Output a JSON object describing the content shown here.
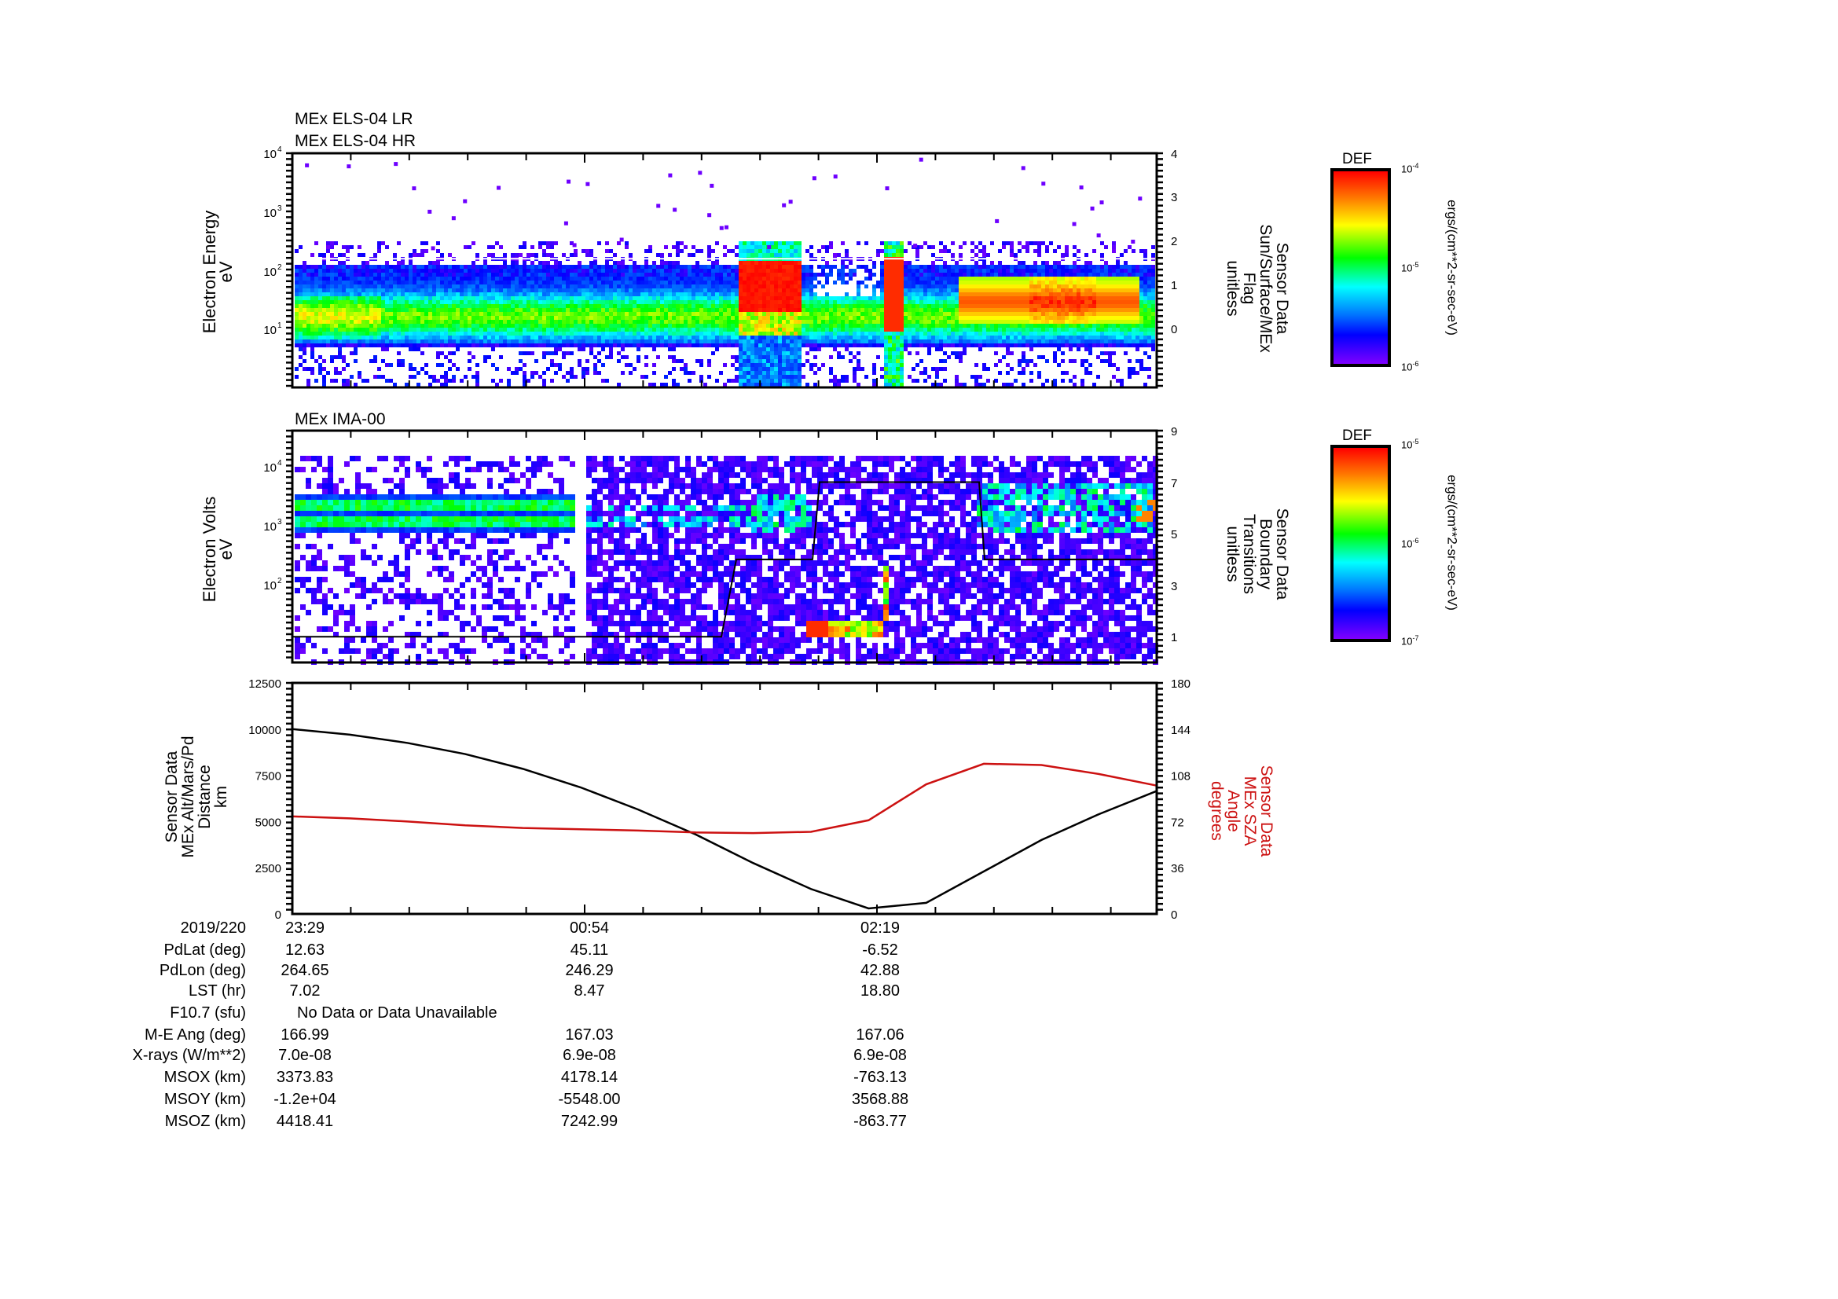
{
  "chart_data": [
    {
      "type": "heatmap",
      "panel": "top",
      "titles": [
        "MEx ELS-04 LR",
        "MEx ELS-04 HR"
      ],
      "ylabel": [
        "Electron Energy",
        "eV"
      ],
      "yscale": "log",
      "yticks": [
        "10^4",
        "10^3",
        "10^2",
        "10^1"
      ],
      "ylim": [
        1,
        10000
      ],
      "right_ylabel": [
        "Sensor Data",
        "Sun/Surface/MEx",
        "Flag",
        "unitless"
      ],
      "right_yticks": [
        "4",
        "3",
        "2",
        "1",
        "0"
      ],
      "right_ylim": [
        -0.8,
        4
      ],
      "colorbar": {
        "title": "DEF",
        "ticks": [
          "10^-4",
          "10^-5",
          "10^-6"
        ],
        "units": "ergs/(cm**2-sr-sec-eV)"
      },
      "features": [
        {
          "desc": "background electrons band 5-150 eV, green core ~10-40 eV",
          "x_start": "23:29",
          "x_end": "end"
        },
        {
          "desc": "intense red burst 30-200 eV",
          "x_start": "~01:32",
          "x_end": "~01:42"
        },
        {
          "desc": "narrow intense red burst",
          "x_start": "~02:19",
          "x_end": "~02:22"
        },
        {
          "desc": "orange/red band 30-80 eV",
          "x_start": "~02:34",
          "x_end": "~03:00"
        }
      ],
      "flag_line": {
        "value": 1.7,
        "color": "#ffffff"
      }
    },
    {
      "type": "heatmap",
      "panel": "middle",
      "titles": [
        "MEx IMA-00"
      ],
      "ylabel": [
        "Electron Volts",
        "eV"
      ],
      "yscale": "log",
      "yticks": [
        "10^4",
        "10^3",
        "10^2"
      ],
      "right_ylabel": [
        "Sensor Data",
        "Boundary",
        "Transitions",
        "unitless"
      ],
      "right_yticks": [
        "9",
        "7",
        "5",
        "3",
        "1"
      ],
      "right_ylim": [
        0,
        9
      ],
      "colorbar": {
        "title": "DEF",
        "ticks": [
          "10^-5",
          "10^-6",
          "10^-7"
        ],
        "units": "ergs/(cm**2-sr-sec-eV)"
      },
      "boundary_transitions": {
        "x": [
          "23:29",
          "~01:27",
          "~01:31",
          "~01:44",
          "~01:45",
          "~02:12",
          "~02:13",
          "end"
        ],
        "y": [
          1,
          1,
          4,
          4,
          7,
          7,
          4,
          4
        ]
      },
      "features": [
        {
          "desc": "solar wind ion bands at ~1-3 keV",
          "x_start": "23:29",
          "x_end": "~00:54"
        },
        {
          "desc": "data gap",
          "x_start": "~00:54",
          "x_end": "~00:55"
        },
        {
          "desc": "low-energy ions ~20 eV red/green streak",
          "x_start": "~01:55",
          "x_end": "~02:17"
        },
        {
          "desc": "magnetosheath ions 1-5 keV",
          "x_start": "~02:34",
          "x_end": "end"
        }
      ]
    },
    {
      "type": "line",
      "panel": "bottom",
      "ylabel": [
        "Sensor Data",
        "MEx Alt/Mars/Pd",
        "Distance",
        "km"
      ],
      "yticks": [
        "12500",
        "10000",
        "7500",
        "5000",
        "2500",
        "0"
      ],
      "ylim": [
        0,
        12500
      ],
      "right_ylabel": [
        "Sensor Data",
        "MEx SZA",
        "Angle",
        "degrees"
      ],
      "right_yticks": [
        "180",
        "144",
        "108",
        "72",
        "36",
        "0"
      ],
      "right_ylim": [
        0,
        180
      ],
      "x_minutes_from_start": [
        0,
        17,
        34,
        51,
        68,
        85,
        102,
        119,
        136,
        153,
        170,
        187,
        204,
        221,
        238,
        255
      ],
      "series": [
        {
          "name": "MEx Alt/Mars/Pd Distance (km)",
          "color": "#000000",
          "axis": "left",
          "values": [
            10000,
            9700,
            9250,
            8650,
            7850,
            6850,
            5650,
            4300,
            2750,
            1350,
            300,
            600,
            2300,
            4000,
            5400,
            6650
          ]
        },
        {
          "name": "MEx SZA Angle (degrees)",
          "color": "#cc1111",
          "axis": "right",
          "values": [
            76,
            74.5,
            72,
            69,
            67,
            66,
            65,
            63.5,
            63,
            64,
            73,
            101,
            117,
            116,
            109,
            100
          ]
        }
      ]
    }
  ],
  "x_axis": {
    "major_ticks": [
      "23:29",
      "00:54",
      "02:19"
    ],
    "minor_per_major": 5
  },
  "info_table": {
    "rows": [
      {
        "label": "2019/220",
        "values": [
          "23:29",
          "00:54",
          "02:19"
        ]
      },
      {
        "label": "PdLat (deg)",
        "values": [
          "12.63",
          "45.11",
          "-6.52"
        ]
      },
      {
        "label": "PdLon (deg)",
        "values": [
          "264.65",
          "246.29",
          "42.88"
        ]
      },
      {
        "label": "LST (hr)",
        "values": [
          "7.02",
          "8.47",
          "18.80"
        ]
      },
      {
        "label": "F10.7 (sfu)",
        "values": [
          "No Data or Data Unavailable",
          "",
          ""
        ]
      },
      {
        "label": "M-E Ang (deg)",
        "values": [
          "166.99",
          "167.03",
          "167.06"
        ]
      },
      {
        "label": "X-rays (W/m**2)",
        "values": [
          "7.0e-08",
          "6.9e-08",
          "6.9e-08"
        ]
      },
      {
        "label": "MSOX (km)",
        "values": [
          "3373.83",
          "4178.14",
          "-763.13"
        ]
      },
      {
        "label": "MSOY (km)",
        "values": [
          "-1.2e+04",
          "-5548.00",
          "3568.88"
        ]
      },
      {
        "label": "MSOZ (km)",
        "values": [
          "4418.41",
          "7242.99",
          "-863.77"
        ]
      }
    ]
  },
  "labels": {
    "top_title_1": "MEx ELS-04 LR",
    "top_title_2": "MEx ELS-04 HR",
    "mid_title": "MEx IMA-00",
    "top_ylabel": "Electron Energy",
    "top_yunit": "eV",
    "mid_ylabel": "Electron Volts",
    "mid_yunit": "eV",
    "top_right_1": "Sensor Data",
    "top_right_2": "Sun/Surface/MEx",
    "top_right_3": "Flag",
    "top_right_4": "unitless",
    "mid_right_1": "Sensor Data",
    "mid_right_2": "Boundary",
    "mid_right_3": "Transitions",
    "mid_right_4": "unitless",
    "bot_left_1": "Sensor Data",
    "bot_left_2": "MEx Alt/Mars/Pd",
    "bot_left_3": "Distance",
    "bot_left_4": "km",
    "bot_right_1": "Sensor Data",
    "bot_right_2": "MEx SZA",
    "bot_right_3": "Angle",
    "bot_right_4": "degrees",
    "cb_title": "DEF",
    "cb1_units": "ergs/(cm**2-sr-sec-eV)",
    "cb2_units": "ergs/(cm**2-sr-sec-eV)",
    "cb1_t0": "10",
    "cb1_e0": "-4",
    "cb1_t1": "10",
    "cb1_e1": "-5",
    "cb1_t2": "10",
    "cb1_e2": "-6",
    "cb2_t0": "10",
    "cb2_e0": "-5",
    "cb2_t1": "10",
    "cb2_e1": "-6",
    "cb2_t2": "10",
    "cb2_e2": "-7"
  },
  "colors": {
    "alt_line": "#000000",
    "sza_line": "#cc1111",
    "sza_label": "#cc1111"
  }
}
